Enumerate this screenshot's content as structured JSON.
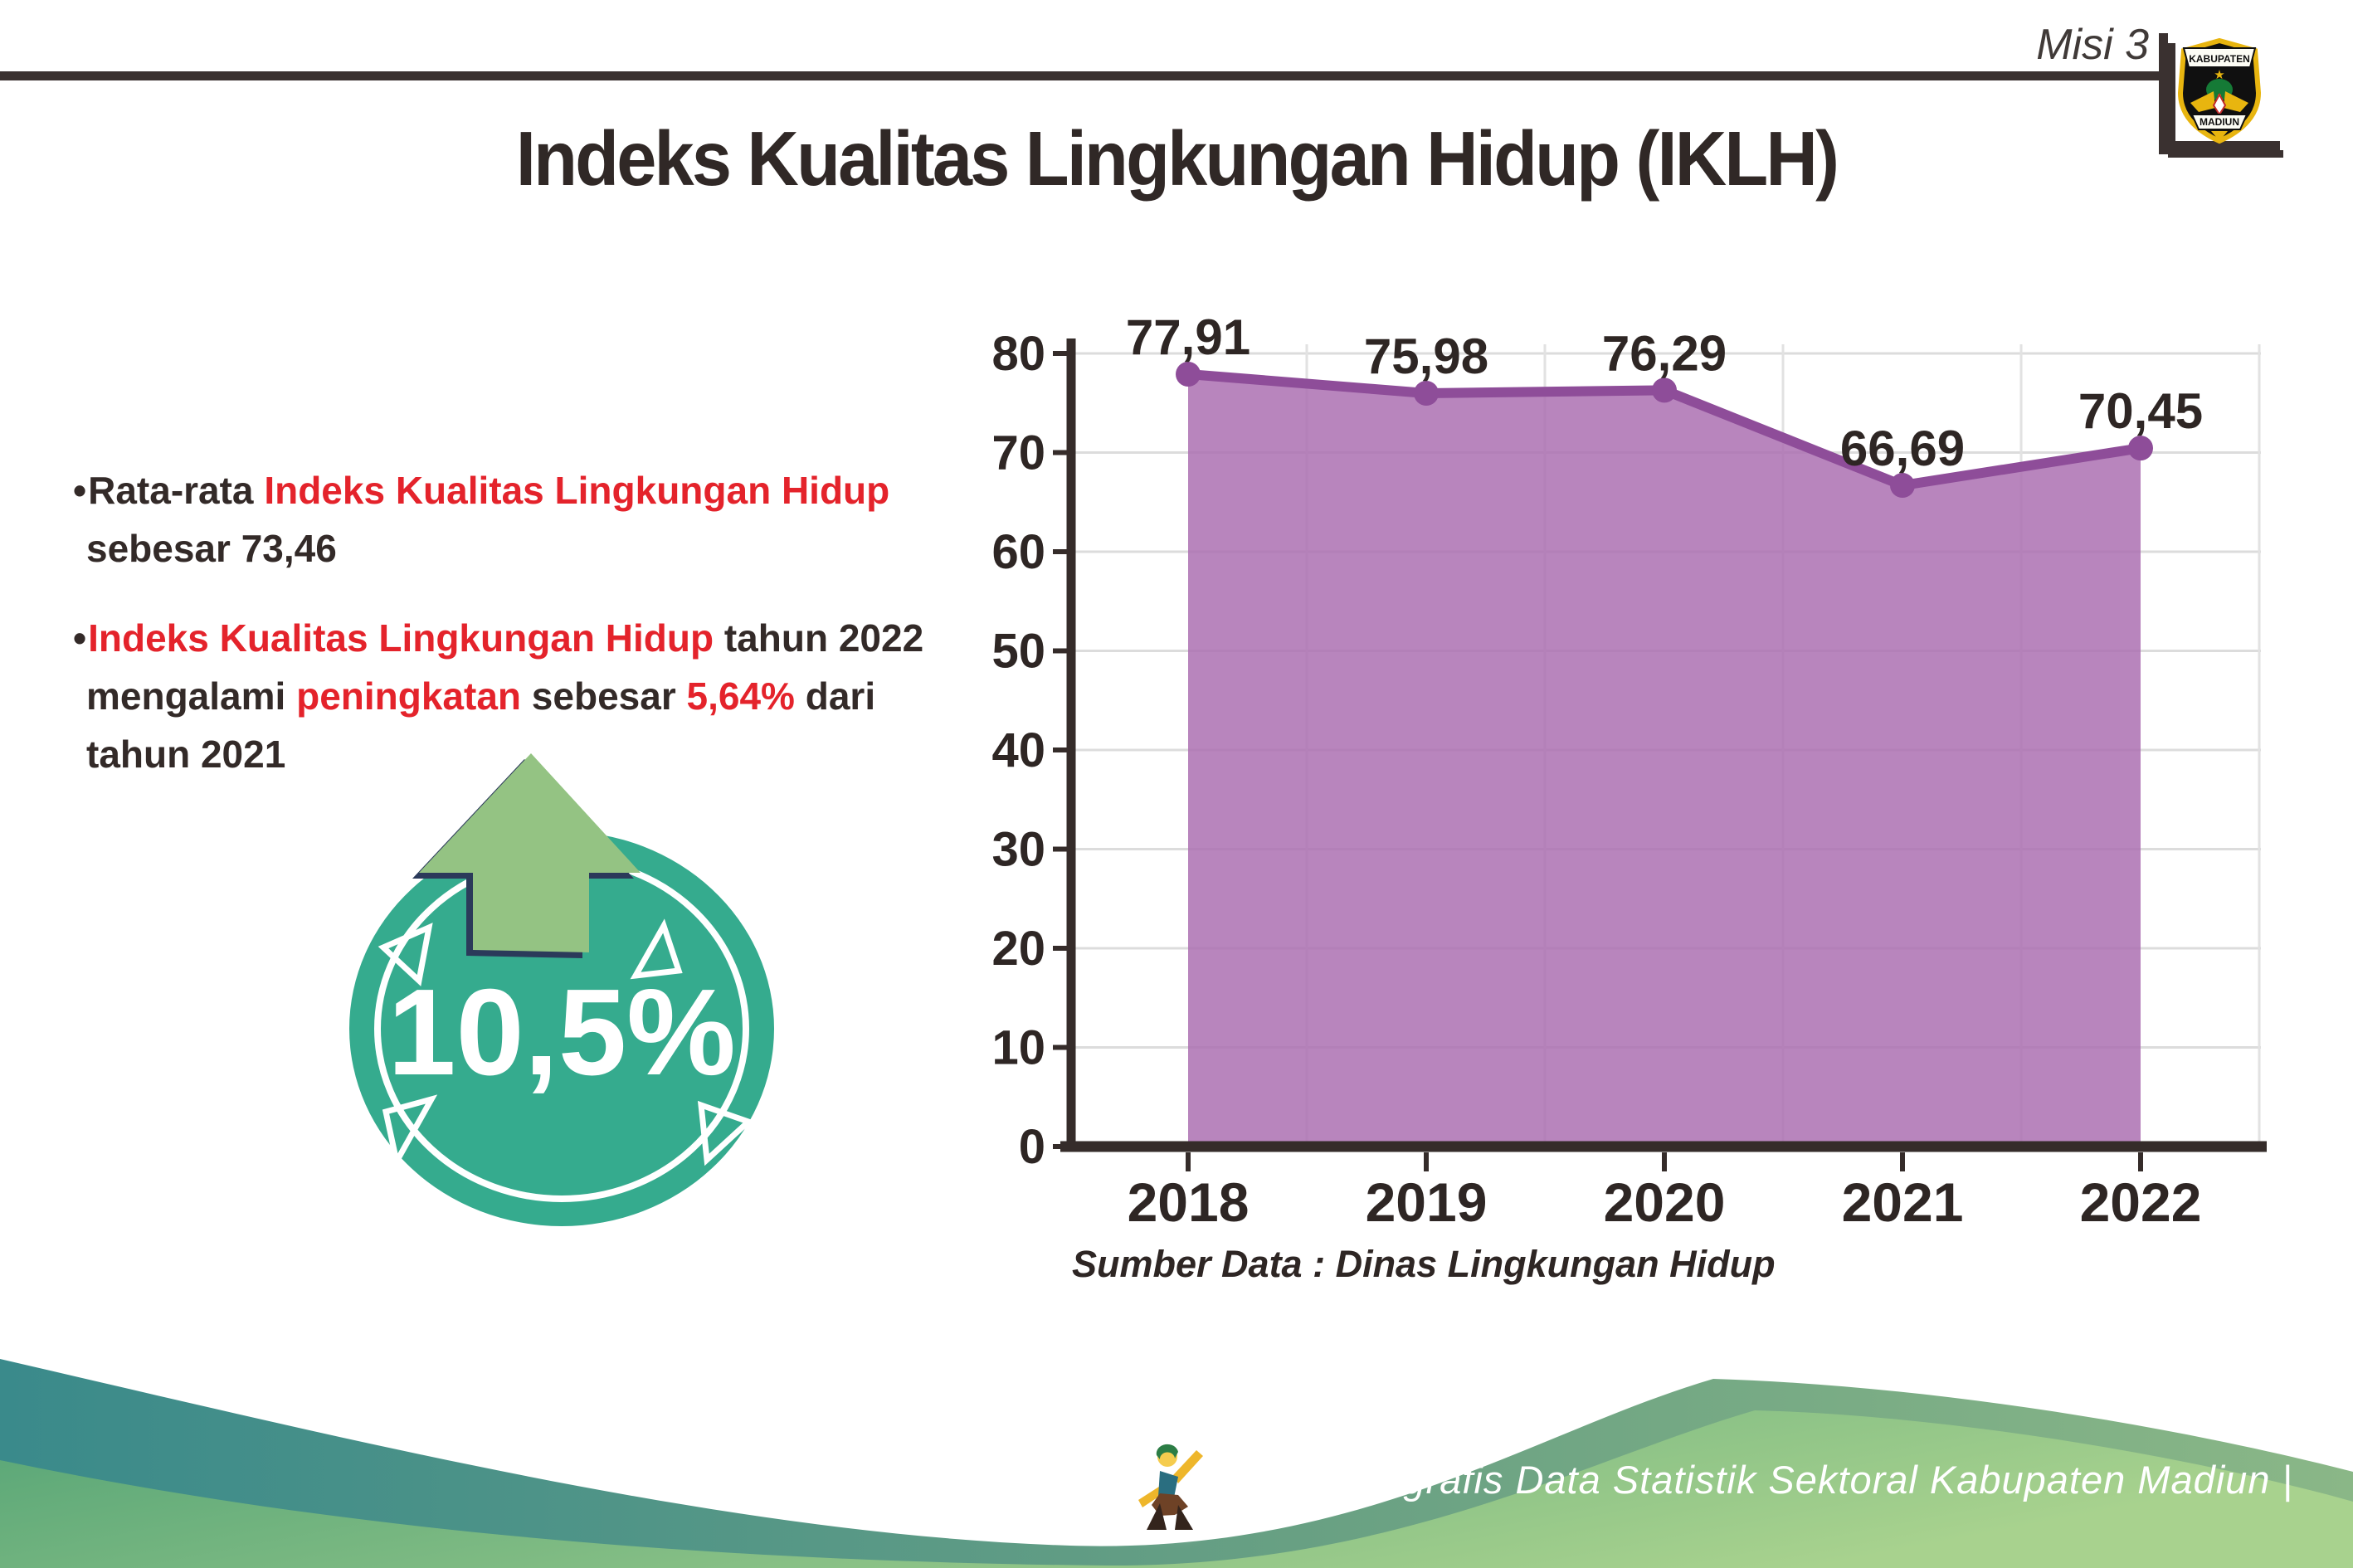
{
  "header": {
    "misi": "Misi 3",
    "title": "Indeks Kualitas Lingkungan Hidup (IKLH)",
    "logo": {
      "name": "kabupaten-madiun-seal",
      "top": "KABUPATEN",
      "bottom": "MADIUN"
    }
  },
  "bullets_marker": "•",
  "bullets": [
    {
      "lines": [
        [
          {
            "t": "Rata-rata ",
            "c": "d"
          },
          {
            "t": "Indeks Kualitas Lingkungan Hidup",
            "c": "r"
          }
        ],
        [
          {
            "t": "sebesar 73,46",
            "c": "d"
          }
        ]
      ]
    },
    {
      "lines": [
        [
          {
            "t": "Indeks Kualitas Lingkungan Hidup",
            "c": "r"
          },
          {
            "t": " tahun 2022",
            "c": "d"
          }
        ],
        [
          {
            "t": "mengalami ",
            "c": "d"
          },
          {
            "t": "peningkatan",
            "c": "r"
          },
          {
            "t": " sebesar ",
            "c": "d"
          },
          {
            "t": "5,64%",
            "c": "r"
          },
          {
            "t": " dari",
            "c": "d"
          }
        ],
        [
          {
            "t": "tahun 2021",
            "c": "d"
          }
        ]
      ]
    }
  ],
  "badge": {
    "value": "10,5%",
    "circle_color": "#35ab8e",
    "arrow_color": "#94c383",
    "arrow_outline_color": "#2b3a5a"
  },
  "chart_data": {
    "type": "area",
    "categories": [
      "2018",
      "2019",
      "2020",
      "2021",
      "2022"
    ],
    "values": [
      77.91,
      75.98,
      76.29,
      66.69,
      70.45
    ],
    "value_labels": [
      "77,91",
      "75,98",
      "76,29",
      "66,69",
      "70,45"
    ],
    "ylim": [
      0,
      80
    ],
    "ytick_step": 10,
    "grid": true,
    "legend": "none",
    "line_color": "#8e4d99",
    "fill_color": "#ac70b2",
    "axis_color": "#352c2a",
    "label_color": "#2e2624",
    "gridline_color": "#dcdcdc",
    "source_note": "Sumber Data : Dinas Lingkungan Hidup"
  },
  "footer": {
    "credit": "Media Infografis Data Statistik Sektoral Kabupaten Madiun |",
    "teal_color": "#3a8a8b",
    "green_color": "#55a476",
    "green_light_color": "#a8d28e"
  }
}
